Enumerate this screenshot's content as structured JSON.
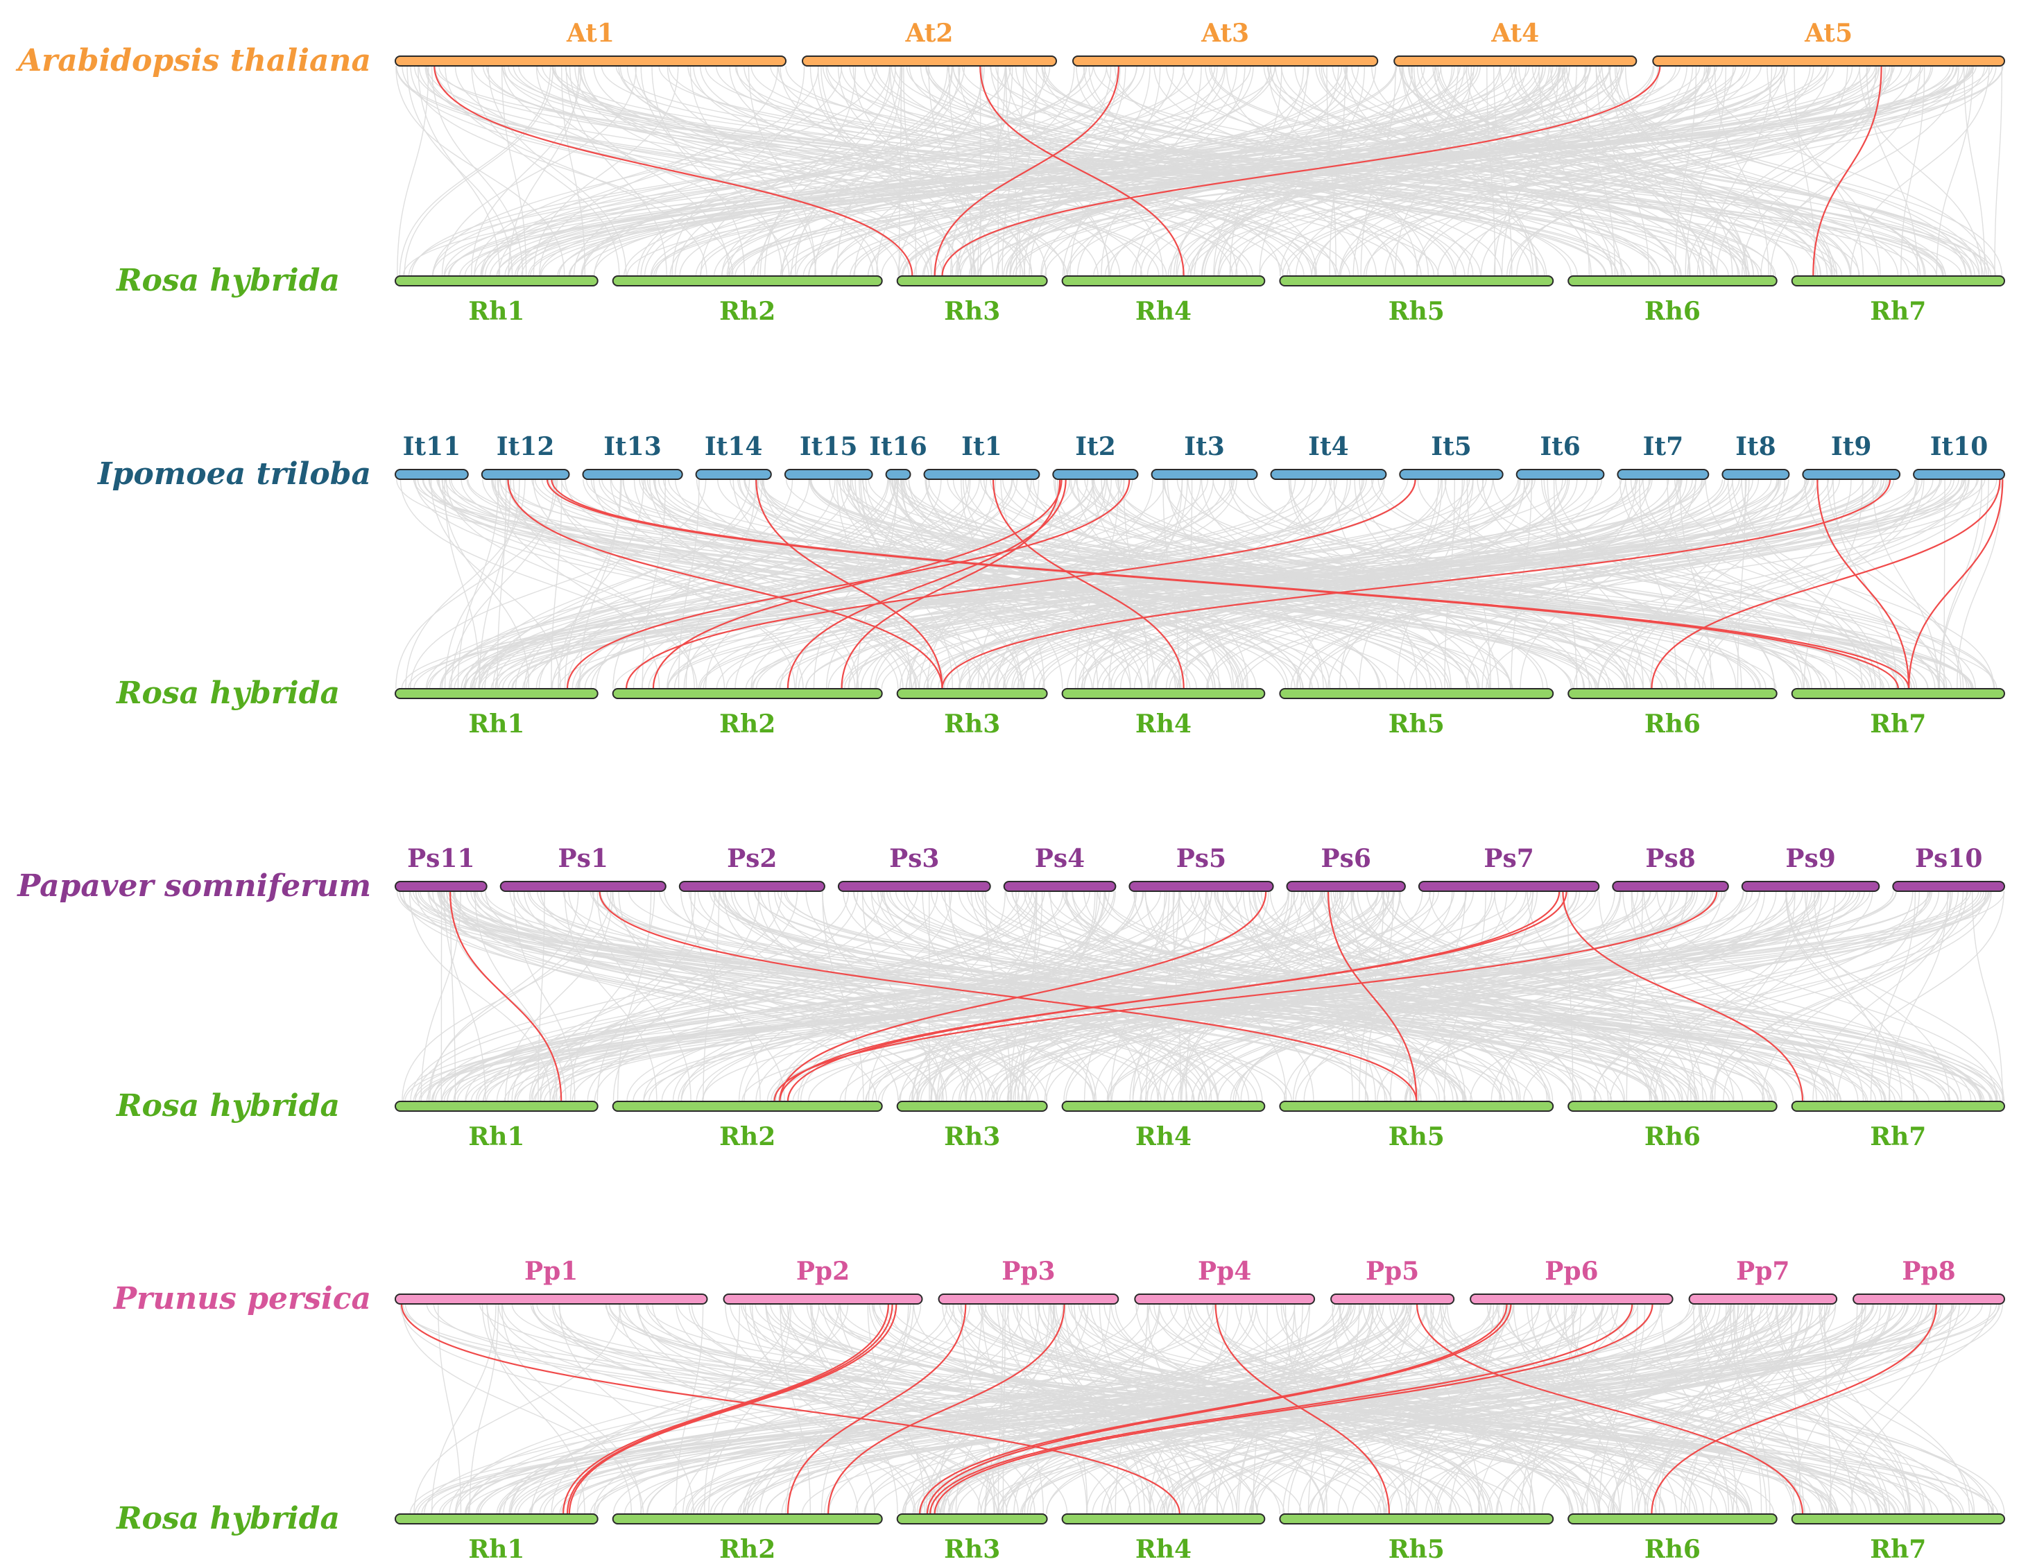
{
  "colors": {
    "background_links": "#dcdcdc",
    "highlight_links": "#f04a4a",
    "rosa": "#55ad1e",
    "rosa_bar": "#92d465",
    "bar_outline": "#2a2a2a"
  },
  "reference": {
    "species": "Rosa hybrida",
    "chromosomes": [
      "Rh1",
      "Rh2",
      "Rh3",
      "Rh4",
      "Rh5",
      "Rh6",
      "Rh7"
    ],
    "relative_lengths": [
      1.0,
      1.33,
      0.74,
      1.0,
      1.35,
      1.03,
      1.05
    ]
  },
  "panels": [
    {
      "species": "Arabidopsis thaliana",
      "label_color": "#f59a3a",
      "bar_color": "#ffae5e",
      "chromosomes": [
        "At1",
        "At2",
        "At3",
        "At4",
        "At5"
      ],
      "relative_lengths": [
        1.0,
        0.65,
        0.78,
        0.62,
        0.9
      ],
      "links": [
        [
          0,
          0.1,
          2,
          0.1
        ],
        [
          1,
          0.7,
          3,
          0.6
        ],
        [
          2,
          0.15,
          2,
          0.25
        ],
        [
          4,
          0.02,
          2,
          0.3
        ],
        [
          4,
          0.65,
          6,
          0.1
        ]
      ]
    },
    {
      "species": "Ipomoea triloba",
      "label_color": "#1f5c7a",
      "bar_color": "#6aaed6",
      "chromosomes": [
        "It11",
        "It12",
        "It13",
        "It14",
        "It15",
        "It16",
        "It1",
        "It2",
        "It3",
        "It4",
        "It5",
        "It6",
        "It7",
        "It8",
        "It9",
        "It10"
      ],
      "relative_lengths": [
        0.6,
        0.72,
        0.82,
        0.62,
        0.72,
        0.2,
        0.95,
        0.7,
        0.87,
        0.95,
        0.85,
        0.72,
        0.75,
        0.55,
        0.8,
        0.75
      ],
      "links": [
        [
          1,
          0.3,
          2,
          0.3
        ],
        [
          1,
          0.75,
          6,
          0.5
        ],
        [
          3,
          0.8,
          2,
          0.3
        ],
        [
          6,
          0.6,
          3,
          0.6
        ],
        [
          7,
          0.1,
          1,
          0.15
        ],
        [
          7,
          0.15,
          1,
          0.65
        ],
        [
          7,
          0.08,
          1,
          0.85
        ],
        [
          7,
          0.9,
          0,
          0.85
        ],
        [
          10,
          0.15,
          1,
          0.05
        ],
        [
          14,
          0.9,
          2,
          0.3
        ],
        [
          14,
          0.15,
          6,
          0.55
        ],
        [
          15,
          0.95,
          5,
          0.4
        ],
        [
          15,
          0.98,
          6,
          0.55
        ],
        [
          1,
          0.8,
          6,
          0.55
        ]
      ]
    },
    {
      "species": "Papaver somniferum",
      "label_color": "#8b3a8f",
      "bar_color": "#a64ca6",
      "chromosomes": [
        "Ps11",
        "Ps1",
        "Ps2",
        "Ps3",
        "Ps4",
        "Ps5",
        "Ps6",
        "Ps7",
        "Ps8",
        "Ps9",
        "Ps10"
      ],
      "relative_lengths": [
        0.68,
        1.23,
        1.08,
        1.13,
        0.83,
        1.07,
        0.88,
        1.34,
        0.86,
        1.02,
        0.83
      ],
      "links": [
        [
          0,
          0.6,
          0,
          0.82
        ],
        [
          1,
          0.6,
          4,
          0.5
        ],
        [
          5,
          0.95,
          1,
          0.62
        ],
        [
          6,
          0.35,
          4,
          0.5
        ],
        [
          7,
          0.82,
          1,
          0.62
        ],
        [
          7,
          0.78,
          1,
          0.65
        ],
        [
          7,
          0.8,
          6,
          0.05
        ],
        [
          8,
          0.9,
          1,
          0.6
        ]
      ]
    },
    {
      "species": "Prunus persica",
      "label_color": "#d6559a",
      "bar_color": "#f598c8",
      "chromosomes": [
        "Pp1",
        "Pp2",
        "Pp3",
        "Pp4",
        "Pp5",
        "Pp6",
        "Pp7",
        "Pp8"
      ],
      "relative_lengths": [
        1.65,
        1.05,
        0.95,
        0.95,
        0.65,
        1.07,
        0.78,
        0.8
      ],
      "links": [
        [
          0,
          0.02,
          3,
          0.58
        ],
        [
          1,
          0.85,
          0,
          0.85
        ],
        [
          1,
          0.83,
          0,
          0.83
        ],
        [
          1,
          0.87,
          0,
          0.86
        ],
        [
          2,
          0.15,
          1,
          0.65
        ],
        [
          2,
          0.7,
          1,
          0.8
        ],
        [
          3,
          0.45,
          4,
          0.4
        ],
        [
          4,
          0.7,
          6,
          0.05
        ],
        [
          5,
          0.18,
          2,
          0.15
        ],
        [
          5,
          0.2,
          2,
          0.2
        ],
        [
          5,
          0.8,
          2,
          0.22
        ],
        [
          5,
          0.9,
          2,
          0.25
        ],
        [
          7,
          0.55,
          5,
          0.4
        ]
      ]
    }
  ]
}
